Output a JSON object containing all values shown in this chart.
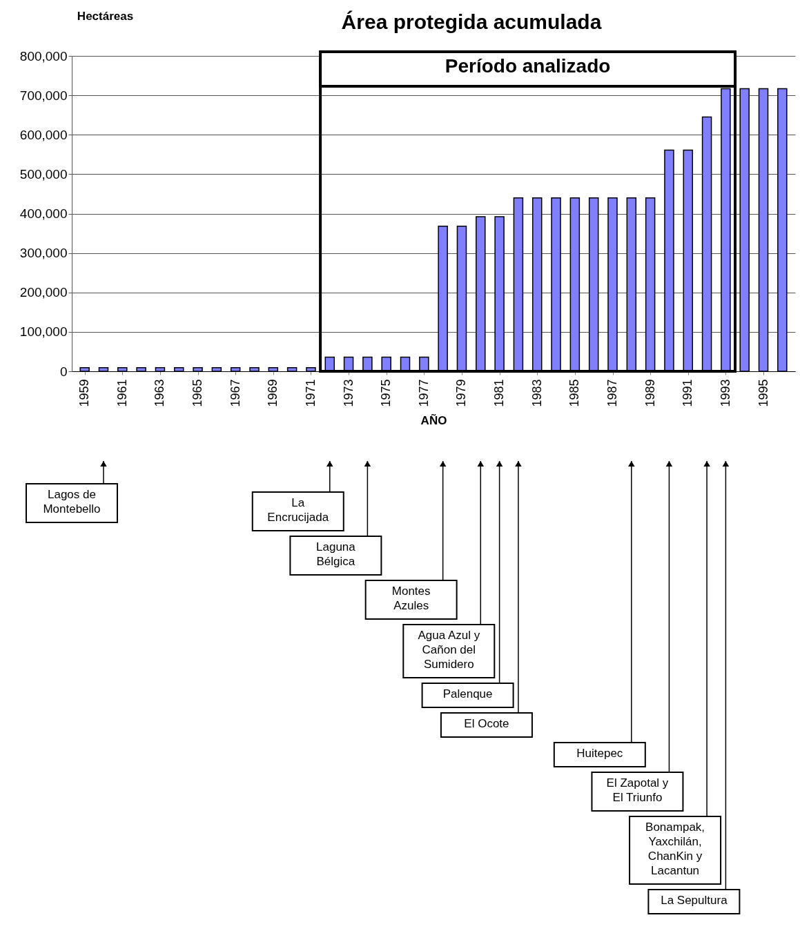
{
  "chart_data": {
    "type": "bar",
    "title": "Área protegida acumulada",
    "xlabel": "AÑO",
    "ylabel": "Hectáreas",
    "x": [
      1959,
      1960,
      1961,
      1962,
      1963,
      1964,
      1965,
      1966,
      1967,
      1968,
      1969,
      1970,
      1971,
      1972,
      1973,
      1974,
      1975,
      1976,
      1977,
      1978,
      1979,
      1980,
      1981,
      1982,
      1983,
      1984,
      1985,
      1986,
      1987,
      1988,
      1989,
      1990,
      1991,
      1992,
      1993,
      1994,
      1995,
      1996
    ],
    "values": [
      9000,
      9000,
      9000,
      9000,
      9000,
      9000,
      9000,
      9000,
      9000,
      9000,
      9000,
      9000,
      9000,
      36000,
      36000,
      36000,
      36000,
      36000,
      36000,
      368000,
      368000,
      392000,
      392000,
      440000,
      440000,
      440000,
      440000,
      440000,
      440000,
      440000,
      440000,
      561000,
      561000,
      645000,
      717000,
      717000,
      717000,
      717000
    ],
    "color": "#8080ff",
    "xlim": [
      1958.5,
      1996.5
    ],
    "xticks": [
      1959,
      1961,
      1963,
      1965,
      1967,
      1969,
      1971,
      1973,
      1975,
      1977,
      1979,
      1981,
      1983,
      1985,
      1987,
      1989,
      1991,
      1993,
      1995
    ],
    "ylim": [
      0,
      800000
    ],
    "yticks": [
      0,
      {
        "value": 100000,
        "label": "100,000"
      },
      {
        "value": 200000,
        "label": "200,000"
      },
      {
        "value": 300000,
        "label": "300,000"
      },
      {
        "value": 400000,
        "label": "400,000"
      },
      {
        "value": 500000,
        "label": "500,000"
      },
      {
        "value": 600000,
        "label": "600,000"
      },
      {
        "value": 700000,
        "label": "700,000"
      },
      {
        "value": 800000,
        "label": "800,000"
      }
    ],
    "grid": "y",
    "bands": [
      {
        "axis": "x",
        "from": 1971.5,
        "to": 1993.5,
        "label": "Período analizado"
      }
    ],
    "ref_lines": [
      {
        "axis": "x",
        "value": 1960,
        "label": "Lagos de\nMontebello"
      },
      {
        "axis": "x",
        "value": 1972,
        "label": "La\nEncrucijada"
      },
      {
        "axis": "x",
        "value": 1974,
        "label": "Laguna\nBélgica"
      },
      {
        "axis": "x",
        "value": 1978,
        "label": "Montes\nAzules"
      },
      {
        "axis": "x",
        "value": 1980,
        "label": "Agua Azul y\nCañon del\nSumidero"
      },
      {
        "axis": "x",
        "value": 1981,
        "label": "Palenque"
      },
      {
        "axis": "x",
        "value": 1982,
        "label": "El Ocote"
      },
      {
        "axis": "x",
        "value": 1988,
        "label": "Huitepec"
      },
      {
        "axis": "x",
        "value": 1990,
        "label": "El Zapotal y\nEl Triunfo"
      },
      {
        "axis": "x",
        "value": 1992,
        "label": "Bonampak,\nYaxchilán,\nChanKin y\nLacantun"
      },
      {
        "axis": "x",
        "value": 1993,
        "label": "La Sepultura"
      }
    ]
  }
}
